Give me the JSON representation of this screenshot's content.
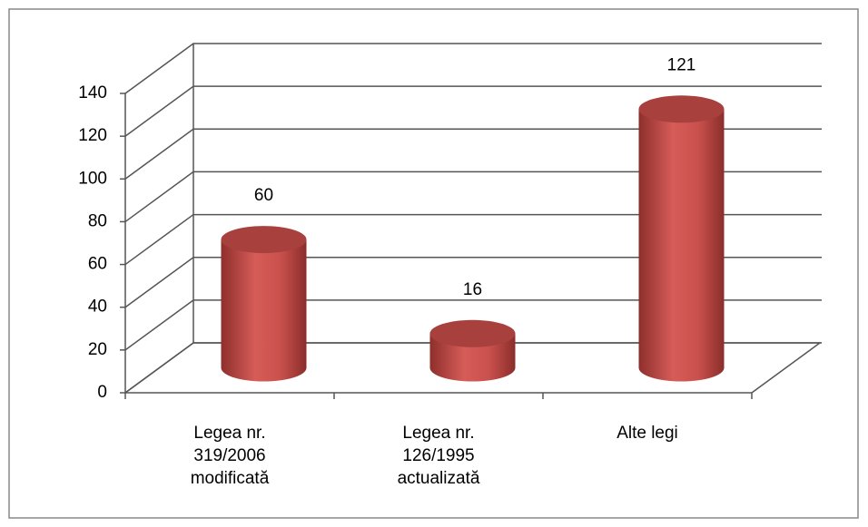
{
  "chart_data": {
    "type": "cylinder",
    "categories": [
      "Legea nr. 319/2006 modificată",
      "Legea nr. 126/1995 actualizată",
      "Alte legi"
    ],
    "values": [
      60,
      16,
      121
    ],
    "color": "#c0504d",
    "ylim": [
      0,
      140
    ],
    "yticks": [
      0,
      20,
      40,
      60,
      80,
      100,
      120,
      140
    ],
    "grid": true
  }
}
